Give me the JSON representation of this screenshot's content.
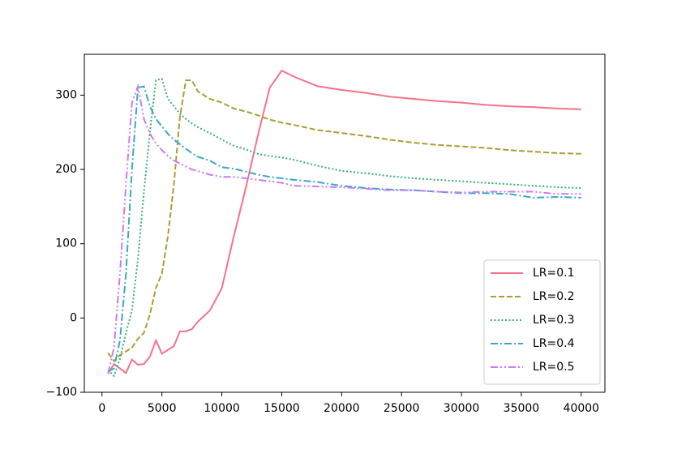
{
  "chart_data": {
    "type": "line",
    "x": [
      500,
      1000,
      1500,
      2000,
      2500,
      3000,
      3500,
      4000,
      4500,
      5000,
      5500,
      6000,
      6500,
      7000,
      7500,
      8000,
      9000,
      10000,
      11000,
      12000,
      13000,
      14000,
      15000,
      16000,
      18000,
      20000,
      22000,
      24000,
      26000,
      28000,
      30000,
      32000,
      34000,
      36000,
      38000,
      40000
    ],
    "series": [
      {
        "name": "LR=0.1",
        "color": "#f77189",
        "linestyle": "solid",
        "values": [
          -75,
          -62,
          -68,
          -74,
          -56,
          -63,
          -62,
          -52,
          -30,
          -48,
          -43,
          -38,
          -18,
          -18,
          -15,
          -5,
          10,
          40,
          110,
          175,
          245,
          310,
          333,
          325,
          312,
          307,
          303,
          298,
          295,
          292,
          290,
          287,
          285,
          284,
          282,
          281
        ]
      },
      {
        "name": "LR=0.2",
        "color": "#ae9d31",
        "linestyle": "dashed",
        "values": [
          -47,
          -58,
          -50,
          -45,
          -40,
          -28,
          -20,
          5,
          40,
          60,
          110,
          180,
          270,
          320,
          320,
          305,
          295,
          290,
          282,
          278,
          273,
          267,
          263,
          260,
          253,
          249,
          245,
          240,
          236,
          233,
          231,
          229,
          226,
          224,
          222,
          221
        ]
      },
      {
        "name": "LR=0.3",
        "color": "#33b07a",
        "linestyle": "dotted",
        "values": [
          -70,
          -78,
          -55,
          -20,
          10,
          80,
          170,
          250,
          320,
          322,
          295,
          285,
          275,
          268,
          262,
          257,
          249,
          240,
          232,
          227,
          221,
          218,
          216,
          213,
          205,
          198,
          195,
          191,
          188,
          186,
          184,
          182,
          180,
          178,
          176,
          175
        ]
      },
      {
        "name": "LR=0.4",
        "color": "#38a9c5",
        "linestyle": "dashdot",
        "values": [
          -72,
          -68,
          -30,
          60,
          200,
          310,
          312,
          285,
          268,
          258,
          248,
          240,
          234,
          228,
          222,
          217,
          212,
          203,
          201,
          197,
          193,
          190,
          188,
          186,
          183,
          178,
          175,
          173,
          172,
          170,
          168,
          168,
          167,
          162,
          163,
          162
        ]
      },
      {
        "name": "LR=0.5",
        "color": "#cc7af4",
        "linestyle": "dashdotdot",
        "values": [
          -75,
          -40,
          60,
          180,
          290,
          312,
          268,
          248,
          235,
          226,
          218,
          212,
          208,
          204,
          200,
          198,
          193,
          190,
          190,
          188,
          186,
          184,
          182,
          178,
          177,
          176,
          174,
          172,
          172,
          170,
          169,
          170,
          170,
          170,
          167,
          167
        ]
      }
    ],
    "xlim": [
      -1475,
      41975
    ],
    "ylim": [
      -100,
      355
    ],
    "xticks": [
      0,
      5000,
      10000,
      15000,
      20000,
      25000,
      30000,
      35000,
      40000
    ],
    "yticks": [
      {
        "value": -100,
        "label": "−100"
      },
      0,
      100,
      200,
      300
    ],
    "legend": "lower right"
  }
}
